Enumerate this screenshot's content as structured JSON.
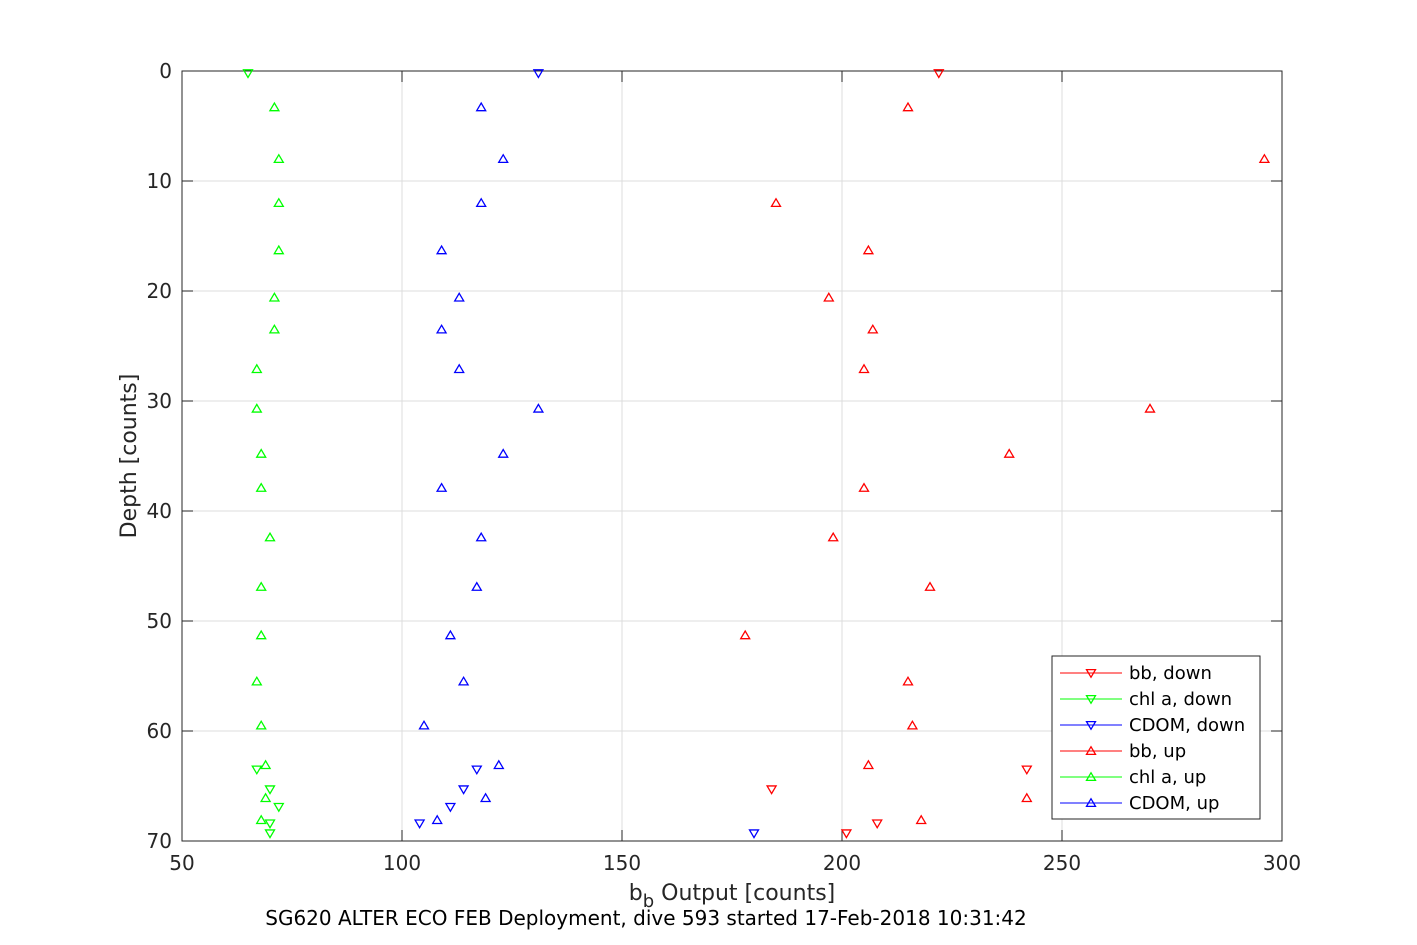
{
  "chart_data": {
    "type": "scatter",
    "title": "SG620 ALTER ECO FEB Deployment, dive 593 started 17-Feb-2018 10:31:42",
    "xlabel_main": "b",
    "xlabel_sub": "b",
    "xlabel_rest": " Output [counts]",
    "ylabel": "Depth [counts]",
    "xlim": [
      50,
      300
    ],
    "ylim": [
      0,
      70
    ],
    "y_reversed": true,
    "grid": true,
    "legend_position": "bottom-right",
    "x_ticks": [
      "50",
      "100",
      "150",
      "200",
      "250",
      "300"
    ],
    "y_ticks": [
      "0",
      "10",
      "20",
      "30",
      "40",
      "50",
      "60",
      "70"
    ],
    "series": [
      {
        "name": "bb, down",
        "color": "#ff0000",
        "marker": "triangle-down",
        "x": [
          222,
          242,
          184,
          208,
          201
        ],
        "y": [
          0.2,
          63.5,
          65.3,
          68.4,
          69.3
        ]
      },
      {
        "name": "chl a, down",
        "color": "#00ff00",
        "marker": "triangle-down",
        "x": [
          65,
          67,
          70,
          72,
          70,
          70
        ],
        "y": [
          0.2,
          63.5,
          65.3,
          66.9,
          68.4,
          69.3
        ]
      },
      {
        "name": "CDOM, down",
        "color": "#0000ff",
        "marker": "triangle-down",
        "x": [
          131,
          117,
          114,
          111,
          104,
          180
        ],
        "y": [
          0.2,
          63.5,
          65.3,
          66.9,
          68.4,
          69.3
        ]
      },
      {
        "name": "bb, up",
        "color": "#ff0000",
        "marker": "triangle-up",
        "x": [
          215,
          296,
          185,
          206,
          197,
          207,
          205,
          270,
          238,
          205,
          198,
          220,
          178,
          215,
          216,
          206,
          242,
          218
        ],
        "y": [
          3.3,
          8.0,
          12.0,
          16.3,
          20.6,
          23.5,
          27.1,
          30.7,
          34.8,
          37.9,
          42.4,
          46.9,
          51.3,
          55.5,
          59.5,
          63.1,
          66.1,
          68.1
        ]
      },
      {
        "name": "chl a, up",
        "color": "#00ff00",
        "marker": "triangle-up",
        "x": [
          71,
          72,
          72,
          72,
          71,
          71,
          67,
          67,
          68,
          68,
          70,
          68,
          68,
          67,
          68,
          69,
          69,
          68
        ],
        "y": [
          3.3,
          8.0,
          12.0,
          16.3,
          20.6,
          23.5,
          27.1,
          30.7,
          34.8,
          37.9,
          42.4,
          46.9,
          51.3,
          55.5,
          59.5,
          63.1,
          66.1,
          68.1
        ]
      },
      {
        "name": "CDOM, up",
        "color": "#0000ff",
        "marker": "triangle-up",
        "x": [
          118,
          123,
          118,
          109,
          113,
          109,
          113,
          131,
          123,
          109,
          118,
          117,
          111,
          114,
          105,
          122,
          119,
          108
        ],
        "y": [
          3.3,
          8.0,
          12.0,
          16.3,
          20.6,
          23.5,
          27.1,
          30.7,
          34.8,
          37.9,
          42.4,
          46.9,
          51.3,
          55.5,
          59.5,
          63.1,
          66.1,
          68.1
        ]
      }
    ]
  }
}
